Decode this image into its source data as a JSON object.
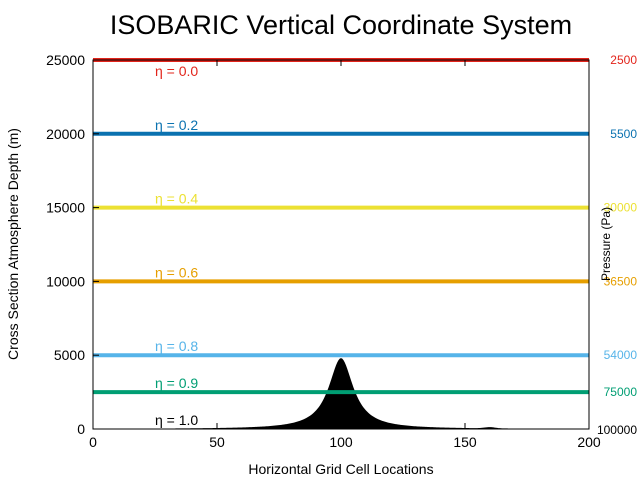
{
  "chart_data": {
    "type": "line",
    "title": "ISOBARIC Vertical Coordinate System",
    "xlabel": "Horizontal Grid Cell Locations",
    "ylabel": "Cross Section Atmosphere Depth (m)",
    "y2label": "Pressure (Pa)",
    "xlim": [
      0,
      200
    ],
    "ylim": [
      0,
      25000
    ],
    "xticks": [
      0,
      50,
      100,
      150,
      200
    ],
    "yticks": [
      0,
      5000,
      10000,
      15000,
      20000,
      25000
    ],
    "grid": false,
    "levels": [
      {
        "eta": "η = 0.0",
        "height": 25000,
        "pressure": "2500",
        "color": "#e2241b"
      },
      {
        "eta": "η = 0.2",
        "height": 20000,
        "pressure": "5500",
        "color": "#0a72b0"
      },
      {
        "eta": "η = 0.4",
        "height": 15000,
        "pressure": "30000",
        "color": "#ece133"
      },
      {
        "eta": "η = 0.6",
        "height": 10000,
        "pressure": "36500",
        "color": "#e69f00"
      },
      {
        "eta": "η = 0.8",
        "height": 5000,
        "pressure": "54000",
        "color": "#56b4e9"
      },
      {
        "eta": "η = 0.9",
        "height": 2500,
        "pressure": "75000",
        "color": "#009e73"
      },
      {
        "eta": "η = 1.0",
        "height": 0,
        "pressure": "100000",
        "color": "#000000"
      }
    ],
    "terrain": {
      "name": "mountain",
      "peak_x": 100,
      "peak_height": 4800,
      "half_width": 6,
      "secondary_bump_x": 160,
      "secondary_bump_height": 80,
      "color": "#000000"
    }
  }
}
